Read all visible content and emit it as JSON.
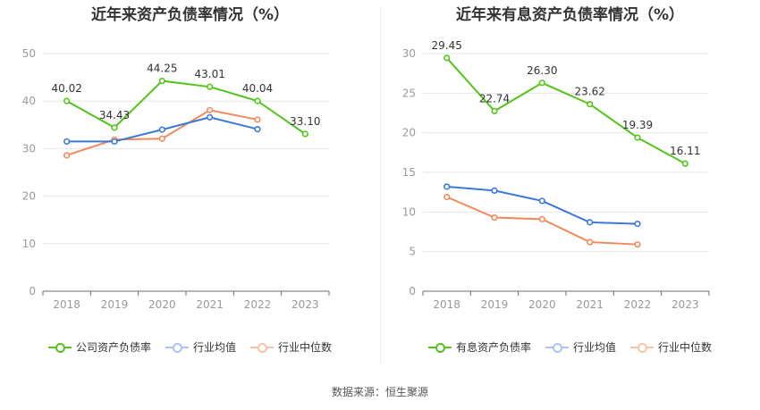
{
  "source_text": "数据来源：恒生聚源",
  "chart_data": [
    {
      "type": "line",
      "title": "近年来资产负债率情况（%）",
      "categories": [
        "2018",
        "2019",
        "2020",
        "2021",
        "2022",
        "2023"
      ],
      "ylim": [
        0,
        50
      ],
      "yticks": [
        0,
        10,
        20,
        30,
        40,
        50
      ],
      "grid": true,
      "legend_position": "bottom",
      "series": [
        {
          "name": "公司资产负债率",
          "color": "#52c41a",
          "values": [
            40.02,
            34.43,
            44.25,
            43.01,
            40.04,
            33.1
          ],
          "labels": [
            "40.02",
            "34.43",
            "44.25",
            "43.01",
            "40.04",
            "33.10"
          ]
        },
        {
          "name": "行业均值",
          "color": "#3a78d8",
          "values": [
            31.5,
            31.5,
            34.0,
            36.6,
            34.1,
            null
          ]
        },
        {
          "name": "行业中位数",
          "color": "#f08a5d",
          "values": [
            28.6,
            31.9,
            32.1,
            38.1,
            36.1,
            null
          ]
        }
      ]
    },
    {
      "type": "line",
      "title": "近年来有息资产负债率情况（%）",
      "categories": [
        "2018",
        "2019",
        "2020",
        "2021",
        "2022",
        "2023"
      ],
      "ylim": [
        0,
        30
      ],
      "yticks": [
        0,
        5,
        10,
        15,
        20,
        25,
        30
      ],
      "grid": true,
      "legend_position": "bottom",
      "series": [
        {
          "name": "有息资产负债率",
          "color": "#52c41a",
          "values": [
            29.45,
            22.74,
            26.3,
            23.62,
            19.39,
            16.11
          ],
          "labels": [
            "29.45",
            "22.74",
            "26.30",
            "23.62",
            "19.39",
            "16.11"
          ]
        },
        {
          "name": "行业均值",
          "color": "#3a78d8",
          "values": [
            13.2,
            12.7,
            11.4,
            8.7,
            8.5,
            null
          ]
        },
        {
          "name": "行业中位数",
          "color": "#f08a5d",
          "values": [
            11.9,
            9.3,
            9.1,
            6.2,
            5.9,
            null
          ]
        }
      ]
    }
  ]
}
